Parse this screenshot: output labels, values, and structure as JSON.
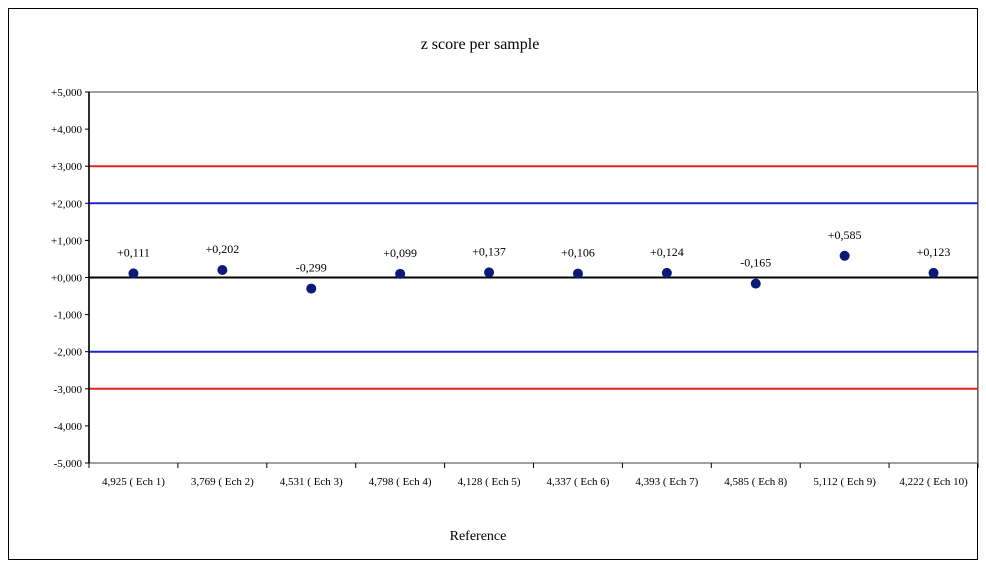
{
  "chart_data": {
    "type": "scatter",
    "title": "z score per sample",
    "xlabel": "Reference",
    "ylabel": "",
    "ylim": [
      -5,
      5
    ],
    "yticks": [
      "+5,000",
      "+4,000",
      "+3,000",
      "+2,000",
      "+1,000",
      "+0,000",
      "-1,000",
      "-2,000",
      "-3,000",
      "-4,000",
      "-5,000"
    ],
    "categories": [
      "4,925 ( Ech 1)",
      "3,769 ( Ech 2)",
      "4,531 ( Ech 3)",
      "4,798 ( Ech 4)",
      "4,128 ( Ech 5)",
      "4,337 ( Ech 6)",
      "4,393 ( Ech 7)",
      "4,585 ( Ech 8)",
      "5,112 ( Ech 9)",
      "4,222 ( Ech 10)"
    ],
    "values": [
      0.111,
      0.202,
      -0.299,
      0.099,
      0.137,
      0.106,
      0.124,
      -0.165,
      0.585,
      0.123
    ],
    "data_labels": [
      "+0,111",
      "+0,202",
      "-0,299",
      "+0,099",
      "+0,137",
      "+0,106",
      "+0,124",
      "-0,165",
      "+0,585",
      "+0,123"
    ],
    "reference_lines": [
      {
        "value": 3,
        "color": "#e8201e"
      },
      {
        "value": 2,
        "color": "#1c23d8"
      },
      {
        "value": 0,
        "color": "#000000"
      },
      {
        "value": -2,
        "color": "#1c23d8"
      },
      {
        "value": -3,
        "color": "#e8201e"
      }
    ],
    "marker_color": "#0b1a78",
    "plot_border_color": "#808080",
    "grid": false,
    "legend": "none"
  }
}
